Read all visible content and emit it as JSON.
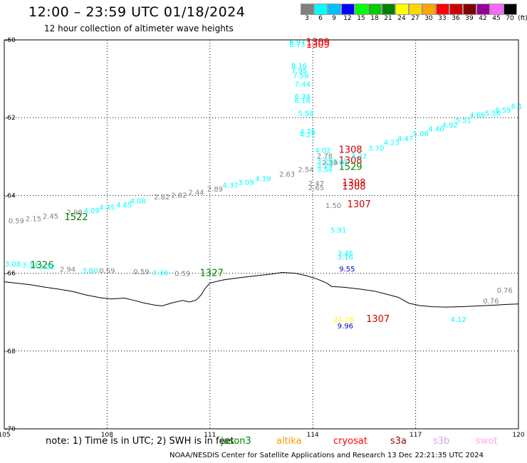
{
  "title": "12:00 – 23:59 UTC 01/18/2024",
  "subtitle": "12 hour collection of altimeter wave heights",
  "legend": {
    "unit": "(ft)",
    "bins": [
      {
        "label": "3",
        "color": "#808080"
      },
      {
        "label": "6",
        "color": "#00ffff"
      },
      {
        "label": "9",
        "color": "#00bfff"
      },
      {
        "label": "12",
        "color": "#0000ff"
      },
      {
        "label": "15",
        "color": "#00ff00"
      },
      {
        "label": "18",
        "color": "#00cc00"
      },
      {
        "label": "21",
        "color": "#008000"
      },
      {
        "label": "24",
        "color": "#ffff00"
      },
      {
        "label": "27",
        "color": "#ffd700"
      },
      {
        "label": "30",
        "color": "#ffa500"
      },
      {
        "label": "33",
        "color": "#ff0000"
      },
      {
        "label": "36",
        "color": "#cc0000"
      },
      {
        "label": "39",
        "color": "#800000"
      },
      {
        "label": "42",
        "color": "#990099"
      },
      {
        "label": "45",
        "color": "#ff66ff"
      },
      {
        "label": "70",
        "color": "#000000"
      }
    ]
  },
  "axes": {
    "lon_ticks": [
      "105",
      "108",
      "111",
      "114",
      "117",
      "120"
    ],
    "lat_ticks": [
      "-60",
      "-62",
      "-64",
      "-66",
      "-68",
      "-70"
    ]
  },
  "coastline": [
    [
      105.0,
      -66.22
    ],
    [
      105.4,
      -66.26
    ],
    [
      105.8,
      -66.3
    ],
    [
      106.2,
      -66.36
    ],
    [
      106.6,
      -66.41
    ],
    [
      107.0,
      -66.47
    ],
    [
      107.4,
      -66.56
    ],
    [
      107.8,
      -66.63
    ],
    [
      108.1,
      -66.66
    ],
    [
      108.3,
      -66.65
    ],
    [
      108.5,
      -66.64
    ],
    [
      108.8,
      -66.7
    ],
    [
      109.1,
      -66.77
    ],
    [
      109.4,
      -66.82
    ],
    [
      109.6,
      -66.84
    ],
    [
      109.9,
      -66.76
    ],
    [
      110.2,
      -66.7
    ],
    [
      110.4,
      -66.74
    ],
    [
      110.6,
      -66.69
    ],
    [
      110.75,
      -66.55
    ],
    [
      110.85,
      -66.4
    ],
    [
      111.0,
      -66.25
    ],
    [
      111.4,
      -66.17
    ],
    [
      111.9,
      -66.11
    ],
    [
      112.4,
      -66.06
    ],
    [
      112.8,
      -66.02
    ],
    [
      113.1,
      -65.98
    ],
    [
      113.5,
      -66.0
    ],
    [
      113.8,
      -66.06
    ],
    [
      114.1,
      -66.14
    ],
    [
      114.4,
      -66.25
    ],
    [
      114.55,
      -66.34
    ],
    [
      114.9,
      -66.36
    ],
    [
      115.3,
      -66.4
    ],
    [
      115.8,
      -66.46
    ],
    [
      116.2,
      -66.55
    ],
    [
      116.5,
      -66.62
    ],
    [
      116.8,
      -66.77
    ],
    [
      117.1,
      -66.83
    ],
    [
      117.5,
      -66.86
    ],
    [
      117.9,
      -66.87
    ],
    [
      118.3,
      -66.86
    ],
    [
      118.8,
      -66.84
    ],
    [
      119.3,
      -66.82
    ],
    [
      119.7,
      -66.8
    ],
    [
      120.0,
      -66.79
    ]
  ],
  "observations": [
    {
      "lon": 113.55,
      "lat": -60.12,
      "value": "6.97",
      "color": "#00ffff"
    },
    {
      "lon": 113.55,
      "lat": -60.18,
      "value": "6.73",
      "color": "#00ffff"
    },
    {
      "lon": 114.15,
      "lat": -60.14,
      "value": "1309",
      "color": "#ff0000",
      "big": true
    },
    {
      "lon": 114.15,
      "lat": -60.2,
      "value": "1309",
      "color": "#ff0000",
      "big": true
    },
    {
      "lon": 113.6,
      "lat": -60.72,
      "value": "8.16",
      "color": "#00ffff"
    },
    {
      "lon": 113.6,
      "lat": -60.85,
      "value": "7.95",
      "color": "#00ffff"
    },
    {
      "lon": 113.65,
      "lat": -60.98,
      "value": "7.58",
      "color": "#00ffff"
    },
    {
      "lon": 113.7,
      "lat": -61.2,
      "value": "7.44",
      "color": "#00ffff"
    },
    {
      "lon": 113.7,
      "lat": -61.52,
      "value": "6.34",
      "color": "#00ffff"
    },
    {
      "lon": 113.7,
      "lat": -61.62,
      "value": "6.16",
      "color": "#00ffff"
    },
    {
      "lon": 113.8,
      "lat": -61.95,
      "value": "5.58",
      "color": "#00ffff"
    },
    {
      "lon": 113.85,
      "lat": -62.42,
      "value": "4.76",
      "color": "#00ffff"
    },
    {
      "lon": 113.85,
      "lat": -62.5,
      "value": "4.21",
      "color": "#00ffff"
    },
    {
      "lon": 114.3,
      "lat": -62.9,
      "value": "4.02",
      "color": "#00ffff"
    },
    {
      "lon": 114.35,
      "lat": -63.05,
      "value": "2.78",
      "color": "#808080"
    },
    {
      "lon": 114.35,
      "lat": -63.18,
      "value": "3.29",
      "color": "#00ffff"
    },
    {
      "lon": 114.35,
      "lat": -63.3,
      "value": "3.29",
      "color": "#00ffff"
    },
    {
      "lon": 114.35,
      "lat": -63.4,
      "value": "3.54",
      "color": "#00ffff"
    },
    {
      "lon": 115.1,
      "lat": -62.9,
      "value": "1308",
      "color": "#cc0000",
      "big": true
    },
    {
      "lon": 115.1,
      "lat": -63.18,
      "value": "1308",
      "color": "#cc0000",
      "big": true
    },
    {
      "lon": 115.1,
      "lat": -63.34,
      "value": "1529",
      "color": "#008000",
      "big": true
    },
    {
      "lon": 114.8,
      "lat": -63.2,
      "value": "3.05",
      "color": "#00ffff"
    },
    {
      "lon": 115.35,
      "lat": -63.05,
      "value": "3.22",
      "color": "#00ffff"
    },
    {
      "lon": 115.85,
      "lat": -62.85,
      "value": "3.70",
      "color": "#00ffff"
    },
    {
      "lon": 116.3,
      "lat": -62.7,
      "value": "4.23",
      "color": "#00ffff"
    },
    {
      "lon": 116.7,
      "lat": -62.6,
      "value": "4.47",
      "color": "#00ffff"
    },
    {
      "lon": 117.15,
      "lat": -62.47,
      "value": "5.06",
      "color": "#00ffff"
    },
    {
      "lon": 117.6,
      "lat": -62.35,
      "value": "4.40",
      "color": "#00ffff"
    },
    {
      "lon": 118.0,
      "lat": -62.25,
      "value": "4.92",
      "color": "#00ffff"
    },
    {
      "lon": 118.4,
      "lat": -62.13,
      "value": "5.51",
      "color": "#00ffff"
    },
    {
      "lon": 118.8,
      "lat": -62.0,
      "value": "4.66",
      "color": "#00ffff"
    },
    {
      "lon": 119.25,
      "lat": -61.95,
      "value": "5.56",
      "color": "#00ffff"
    },
    {
      "lon": 119.55,
      "lat": -61.87,
      "value": "6.59",
      "color": "#00ffff"
    },
    {
      "lon": 119.95,
      "lat": -61.77,
      "value": "6.1",
      "color": "#00ffff"
    },
    {
      "lon": 114.5,
      "lat": -63.22,
      "value": "2.39",
      "color": "#808080"
    },
    {
      "lon": 113.8,
      "lat": -63.4,
      "value": "2.54",
      "color": "#808080"
    },
    {
      "lon": 113.25,
      "lat": -63.52,
      "value": "2.63",
      "color": "#808080"
    },
    {
      "lon": 112.55,
      "lat": -63.64,
      "value": "4.19",
      "color": "#00ffff"
    },
    {
      "lon": 112.05,
      "lat": -63.73,
      "value": "3.09",
      "color": "#00ffff"
    },
    {
      "lon": 111.6,
      "lat": -63.8,
      "value": "4.37",
      "color": "#00ffff"
    },
    {
      "lon": 111.15,
      "lat": -63.9,
      "value": "2.89",
      "color": "#808080"
    },
    {
      "lon": 110.6,
      "lat": -63.98,
      "value": "2.44",
      "color": "#808080"
    },
    {
      "lon": 110.1,
      "lat": -64.06,
      "value": "2.82",
      "color": "#808080"
    },
    {
      "lon": 109.6,
      "lat": -64.1,
      "value": "2.82",
      "color": "#808080"
    },
    {
      "lon": 108.9,
      "lat": -64.2,
      "value": "4.08",
      "color": "#00ffff"
    },
    {
      "lon": 108.5,
      "lat": -64.3,
      "value": "4.65",
      "color": "#00ffff"
    },
    {
      "lon": 108.0,
      "lat": -64.37,
      "value": "4.35",
      "color": "#00ffff"
    },
    {
      "lon": 107.55,
      "lat": -64.45,
      "value": "4.09",
      "color": "#00ffff"
    },
    {
      "lon": 107.05,
      "lat": -64.5,
      "value": "2.98",
      "color": "#808080"
    },
    {
      "lon": 107.1,
      "lat": -64.63,
      "value": "1522",
      "color": "#008000",
      "big": true
    },
    {
      "lon": 106.35,
      "lat": -64.6,
      "value": "2.45",
      "color": "#808080"
    },
    {
      "lon": 105.85,
      "lat": -64.66,
      "value": "2.15",
      "color": "#808080"
    },
    {
      "lon": 105.35,
      "lat": -64.72,
      "value": "0.59",
      "color": "#808080"
    },
    {
      "lon": 114.1,
      "lat": -63.75,
      "value": "2.47",
      "color": "#808080"
    },
    {
      "lon": 114.1,
      "lat": -63.86,
      "value": "2.65",
      "color": "#808080"
    },
    {
      "lon": 115.2,
      "lat": -63.75,
      "value": "1308",
      "color": "#cc0000",
      "big": true
    },
    {
      "lon": 115.2,
      "lat": -63.85,
      "value": "1308",
      "color": "#cc0000",
      "big": true
    },
    {
      "lon": 114.6,
      "lat": -64.32,
      "value": "1.50",
      "color": "#808080"
    },
    {
      "lon": 115.35,
      "lat": -64.3,
      "value": "1307",
      "color": "#cc0000",
      "big": true
    },
    {
      "lon": 114.75,
      "lat": -64.95,
      "value": "5.91",
      "color": "#00ffff"
    },
    {
      "lon": 114.95,
      "lat": -65.55,
      "value": "3.46",
      "color": "#00ffff"
    },
    {
      "lon": 114.95,
      "lat": -65.65,
      "value": "3.16",
      "color": "#00ffff"
    },
    {
      "lon": 115.0,
      "lat": -65.95,
      "value": "9.55",
      "color": "#0000cc"
    },
    {
      "lon": 105.25,
      "lat": -65.82,
      "value": "3.08",
      "color": "#00ffff"
    },
    {
      "lon": 105.75,
      "lat": -65.85,
      "value": "3.14",
      "color": "#00ffff"
    },
    {
      "lon": 106.1,
      "lat": -65.87,
      "value": "1326",
      "color": "#008000",
      "big": true
    },
    {
      "lon": 106.25,
      "lat": -65.9,
      "value": "3.32",
      "color": "#00ffff"
    },
    {
      "lon": 106.85,
      "lat": -65.96,
      "value": "2.94",
      "color": "#808080"
    },
    {
      "lon": 107.5,
      "lat": -66.0,
      "value": "3.80",
      "color": "#00ffff"
    },
    {
      "lon": 108.0,
      "lat": -66.0,
      "value": "0.59",
      "color": "#808080"
    },
    {
      "lon": 109.0,
      "lat": -66.03,
      "value": "0.59",
      "color": "#808080"
    },
    {
      "lon": 109.55,
      "lat": -66.05,
      "value": "3.36",
      "color": "#00ffff"
    },
    {
      "lon": 110.2,
      "lat": -66.07,
      "value": "0.59",
      "color": "#808080"
    },
    {
      "lon": 111.05,
      "lat": -66.07,
      "value": "1327",
      "color": "#008000",
      "big": true
    },
    {
      "lon": 119.6,
      "lat": -66.5,
      "value": "0.76",
      "color": "#808080"
    },
    {
      "lon": 119.2,
      "lat": -66.78,
      "value": "0.76",
      "color": "#808080"
    },
    {
      "lon": 118.25,
      "lat": -67.25,
      "value": "4.12",
      "color": "#00ffff"
    },
    {
      "lon": 114.9,
      "lat": -67.25,
      "value": "21.26",
      "color": "#ffff00"
    },
    {
      "lon": 115.9,
      "lat": -67.25,
      "value": "1307",
      "color": "#cc0000",
      "big": true
    },
    {
      "lon": 114.95,
      "lat": -67.42,
      "value": "9.96",
      "color": "#0000cc"
    }
  ],
  "note": "note:  1) Time is in UTC; 2) SWH is in feet",
  "missions": [
    {
      "label": "jason3",
      "color": "#008000"
    },
    {
      "label": "altika",
      "color": "#ff9900"
    },
    {
      "label": "cryosat",
      "color": "#ff0000"
    },
    {
      "label": "s3a",
      "color": "#990000"
    },
    {
      "label": "s3b",
      "color": "#ccaaee"
    },
    {
      "label": "swot",
      "color": "#ffaadd"
    }
  ],
  "credit": "NOAA/NESDIS Center for Satellite Applications and Research    13 Dec 22:21:35 UTC 2024"
}
